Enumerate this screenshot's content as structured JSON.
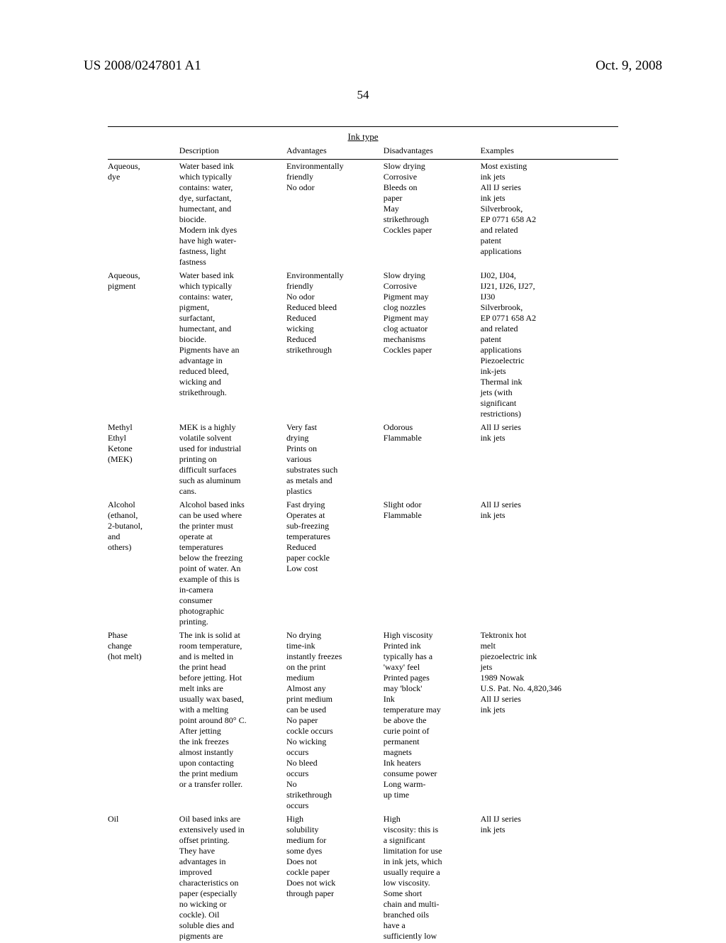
{
  "header": {
    "pub_number": "US 2008/0247801 A1",
    "pub_date": "Oct. 9, 2008"
  },
  "page_number": "54",
  "table": {
    "title": "Ink type",
    "columns": [
      "",
      "Description",
      "Advantages",
      "Disadvantages",
      "Examples"
    ],
    "rows": [
      {
        "name": "Aqueous,\ndye",
        "description": "Water based ink\nwhich typically\ncontains: water,\ndye, surfactant,\nhumectant, and\nbiocide.\nModern ink dyes\nhave high water-\nfastness, light\nfastness",
        "advantages": "Environmentally\nfriendly\nNo odor",
        "disadvantages": "Slow drying\nCorrosive\nBleeds on\npaper\nMay\nstrikethrough\nCockles paper",
        "examples": "Most existing\nink jets\nAll IJ series\nink jets\nSilverbrook,\nEP 0771 658 A2\nand related\npatent\napplications"
      },
      {
        "name": "Aqueous,\npigment",
        "description": "Water based ink\nwhich typically\ncontains: water,\npigment,\nsurfactant,\nhumectant, and\nbiocide.\nPigments have an\nadvantage in\nreduced bleed,\nwicking and\nstrikethrough.",
        "advantages": "Environmentally\nfriendly\nNo odor\nReduced bleed\nReduced\nwicking\nReduced\nstrikethrough",
        "disadvantages": "Slow drying\nCorrosive\nPigment may\nclog nozzles\nPigment may\nclog actuator\nmechanisms\nCockles paper",
        "examples": "IJ02, IJ04,\nIJ21, IJ26, IJ27,\nIJ30\nSilverbrook,\nEP 0771 658 A2\nand related\npatent\napplications\nPiezoelectric\nink-jets\nThermal ink\njets (with\nsignificant\nrestrictions)"
      },
      {
        "name": "Methyl\nEthyl\nKetone\n(MEK)",
        "description": "MEK is a highly\nvolatile solvent\nused for industrial\nprinting on\ndifficult surfaces\nsuch as aluminum\ncans.",
        "advantages": "Very fast\ndrying\nPrints on\nvarious\nsubstrates such\nas metals and\nplastics",
        "disadvantages": "Odorous\nFlammable",
        "examples": "All IJ series\nink jets"
      },
      {
        "name": "Alcohol\n(ethanol,\n2-butanol,\nand\nothers)",
        "description": "Alcohol based inks\ncan be used where\nthe printer must\noperate at\ntemperatures\nbelow the freezing\npoint of water. An\nexample of this is\nin-camera\nconsumer\nphotographic\nprinting.",
        "advantages": "Fast drying\nOperates at\nsub-freezing\ntemperatures\nReduced\npaper cockle\nLow cost",
        "disadvantages": "Slight odor\nFlammable",
        "examples": "All IJ series\nink jets"
      },
      {
        "name": "Phase\nchange\n(hot melt)",
        "description": "The ink is solid at\nroom temperature,\nand is melted in\nthe print head\nbefore jetting. Hot\nmelt inks are\nusually wax based,\nwith a melting\npoint around 80° C.\nAfter jetting\nthe ink freezes\nalmost instantly\nupon contacting\nthe print medium\nor a transfer roller.",
        "advantages": "No drying\ntime-ink\ninstantly freezes\non the print\nmedium\nAlmost any\nprint medium\ncan be used\nNo paper\ncockle occurs\nNo wicking\noccurs\nNo bleed\noccurs\nNo\nstrikethrough\noccurs",
        "disadvantages": "High viscosity\nPrinted ink\ntypically has a\n'waxy' feel\nPrinted pages\nmay 'block'\nInk\ntemperature may\nbe above the\ncurie point of\npermanent\nmagnets\nInk heaters\nconsume power\nLong warm-\nup time",
        "examples": "Tektronix hot\nmelt\npiezoelectric ink\njets\n1989 Nowak\nU.S. Pat. No. 4,820,346\nAll IJ series\nink jets"
      },
      {
        "name": "Oil",
        "description": "Oil based inks are\nextensively used in\noffset printing.\nThey have\nadvantages in\nimproved\ncharacteristics on\npaper (especially\nno wicking or\ncockle). Oil\nsoluble dies and\npigments are",
        "advantages": "High\nsolubility\nmedium for\nsome dyes\nDoes not\ncockle paper\nDoes not wick\nthrough paper",
        "disadvantages": "High\nviscosity: this is\na significant\nlimitation for use\nin ink jets, which\nusually require a\nlow viscosity.\nSome short\nchain and multi-\nbranched oils\nhave a\nsufficiently low",
        "examples": "All IJ series\nink jets"
      }
    ]
  },
  "style": {
    "page_bg": "#ffffff",
    "text_color": "#000000",
    "body_fontsize": 12,
    "header_fontsize": 19,
    "pagenum_fontsize": 17,
    "title_fontsize": 13
  }
}
